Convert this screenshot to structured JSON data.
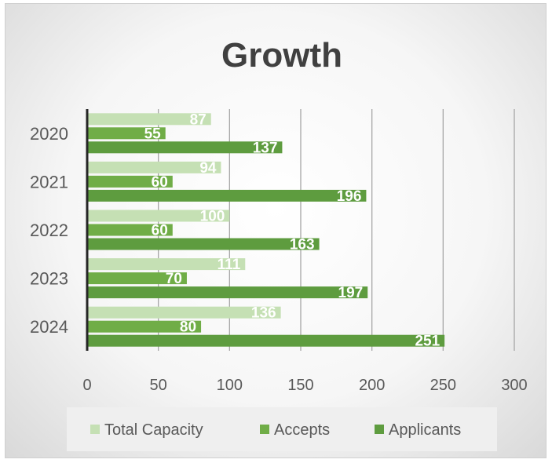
{
  "chart_data": {
    "type": "bar",
    "orientation": "horizontal",
    "title": "Growth",
    "categories": [
      "2020",
      "2021",
      "2022",
      "2023",
      "2024"
    ],
    "series": [
      {
        "name": "Total Capacity",
        "values": [
          87,
          94,
          100,
          111,
          136
        ],
        "color": "#c5e0b4"
      },
      {
        "name": "Accepts",
        "values": [
          55,
          60,
          60,
          70,
          80
        ],
        "color": "#70ad47"
      },
      {
        "name": "Applicants",
        "values": [
          137,
          196,
          163,
          197,
          251
        ],
        "color": "#5e9c3f"
      }
    ],
    "xlim": [
      0,
      300
    ],
    "x_ticks": [
      "0",
      "50",
      "100",
      "150",
      "200",
      "250",
      "300"
    ],
    "grid": true,
    "data_labels": true,
    "legend_position": "bottom"
  }
}
